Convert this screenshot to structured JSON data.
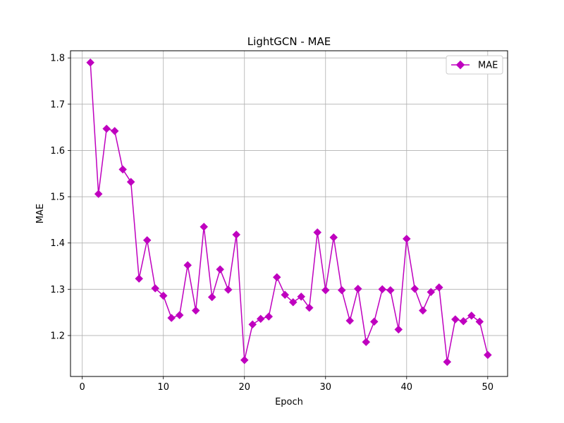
{
  "chart_data": {
    "type": "line",
    "title": "LightGCN - MAE",
    "xlabel": "Epoch",
    "ylabel": "MAE",
    "xlim": [
      -1.45,
      52.45
    ],
    "ylim": [
      1.1115,
      1.8155
    ],
    "xticks": [
      0,
      10,
      20,
      30,
      40,
      50
    ],
    "yticks": [
      1.2,
      1.3,
      1.4,
      1.5,
      1.6,
      1.7,
      1.8
    ],
    "grid": true,
    "legend_position": "top-right",
    "series": [
      {
        "name": "MAE",
        "color": "#bf00bf",
        "marker": "diamond",
        "x": [
          1,
          2,
          3,
          4,
          5,
          6,
          7,
          8,
          9,
          10,
          11,
          12,
          13,
          14,
          15,
          16,
          17,
          18,
          19,
          20,
          21,
          22,
          23,
          24,
          25,
          26,
          27,
          28,
          29,
          30,
          31,
          32,
          33,
          34,
          35,
          36,
          37,
          38,
          39,
          40,
          41,
          42,
          43,
          44,
          45,
          46,
          47,
          48,
          49,
          50
        ],
        "values": [
          1.79,
          1.506,
          1.647,
          1.642,
          1.559,
          1.532,
          1.323,
          1.406,
          1.302,
          1.286,
          1.238,
          1.244,
          1.352,
          1.254,
          1.435,
          1.283,
          1.343,
          1.299,
          1.418,
          1.147,
          1.224,
          1.236,
          1.241,
          1.326,
          1.288,
          1.272,
          1.284,
          1.26,
          1.423,
          1.298,
          1.412,
          1.298,
          1.232,
          1.301,
          1.186,
          1.23,
          1.3,
          1.298,
          1.213,
          1.409,
          1.301,
          1.254,
          1.294,
          1.304,
          1.143,
          1.235,
          1.231,
          1.243,
          1.23,
          1.158
        ]
      }
    ]
  }
}
